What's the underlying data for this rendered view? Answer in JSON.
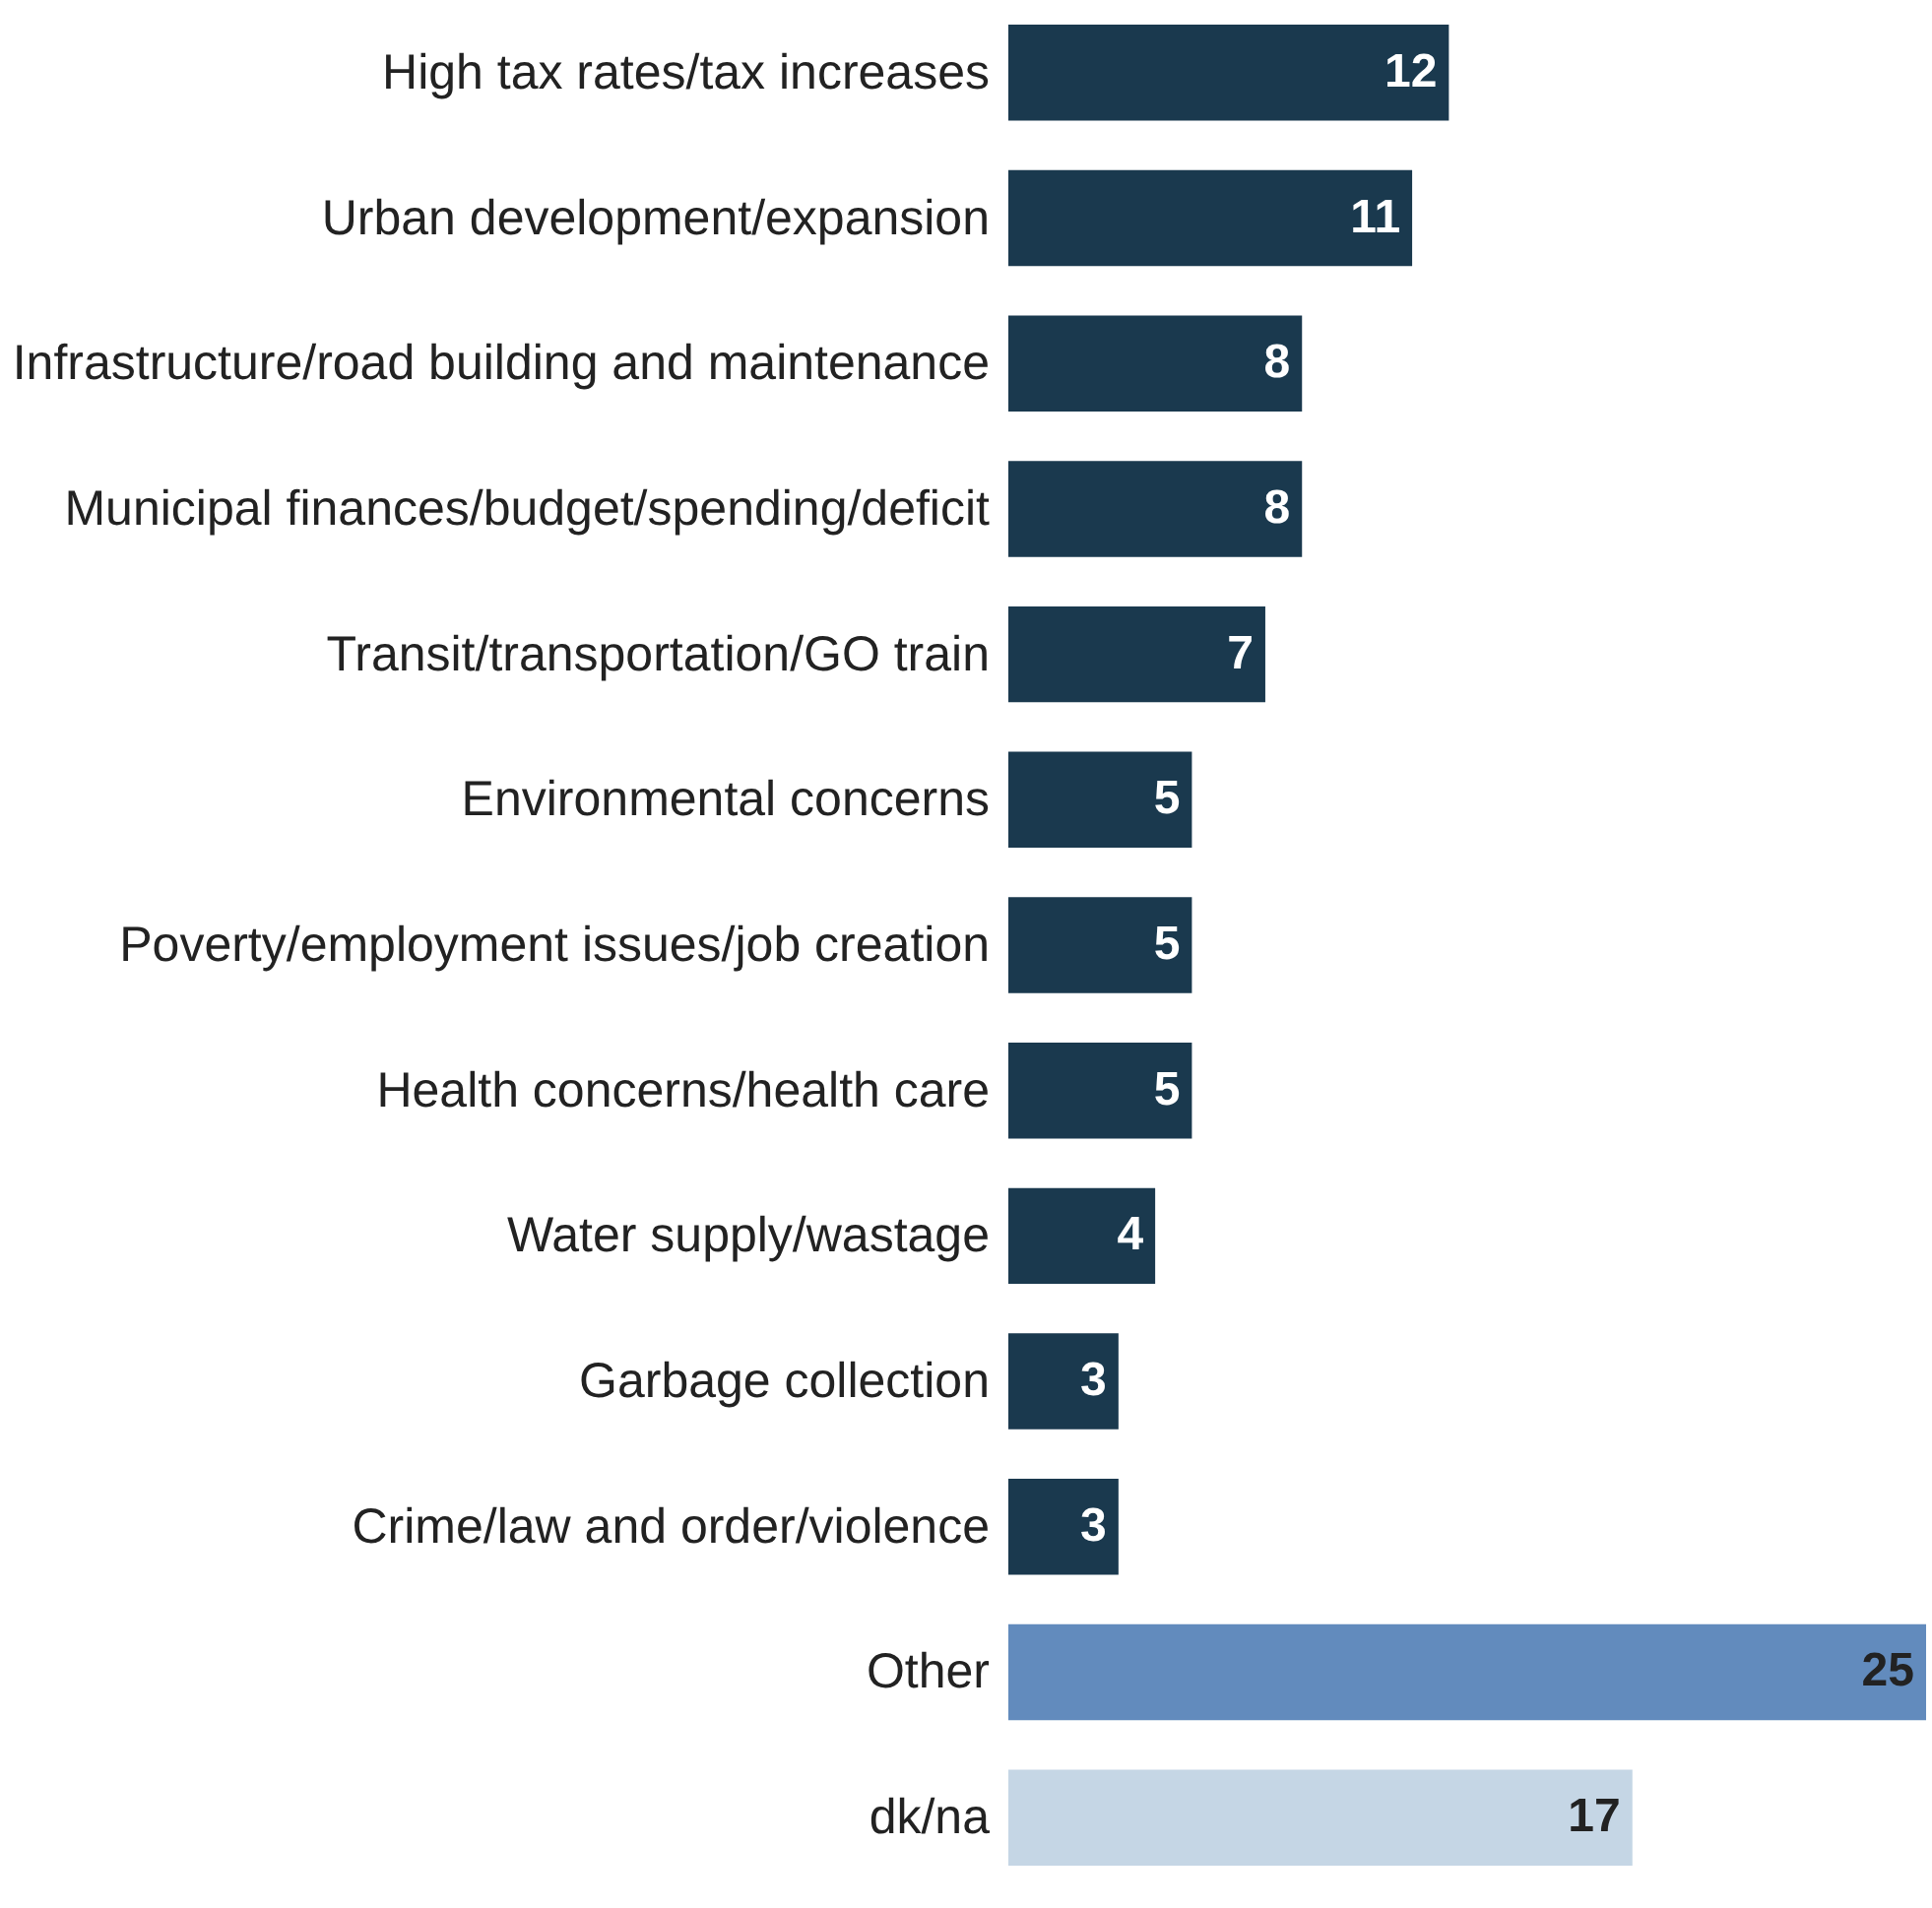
{
  "chart_data": {
    "type": "bar",
    "orientation": "horizontal",
    "data_labels": true,
    "categories": [
      "High tax rates/tax increases",
      "Urban development/expansion",
      "Infrastructure/road building and maintenance",
      "Municipal finances/budget/spending/deficit",
      "Transit/transportation/GO train",
      "Environmental concerns",
      "Poverty/employment issues/job creation",
      "Health concerns/health care",
      "Water supply/wastage",
      "Garbage collection",
      "Crime/law and order/violence",
      "Other",
      "dk/na"
    ],
    "values": [
      12,
      11,
      8,
      8,
      7,
      5,
      5,
      5,
      4,
      3,
      3,
      25,
      17
    ],
    "colors": [
      "#1a394e",
      "#1a394e",
      "#1a394e",
      "#1a394e",
      "#1a394e",
      "#1a394e",
      "#1a394e",
      "#1a394e",
      "#1a394e",
      "#1a394e",
      "#1a394e",
      "#628bbd",
      "#c5d6e5"
    ]
  }
}
